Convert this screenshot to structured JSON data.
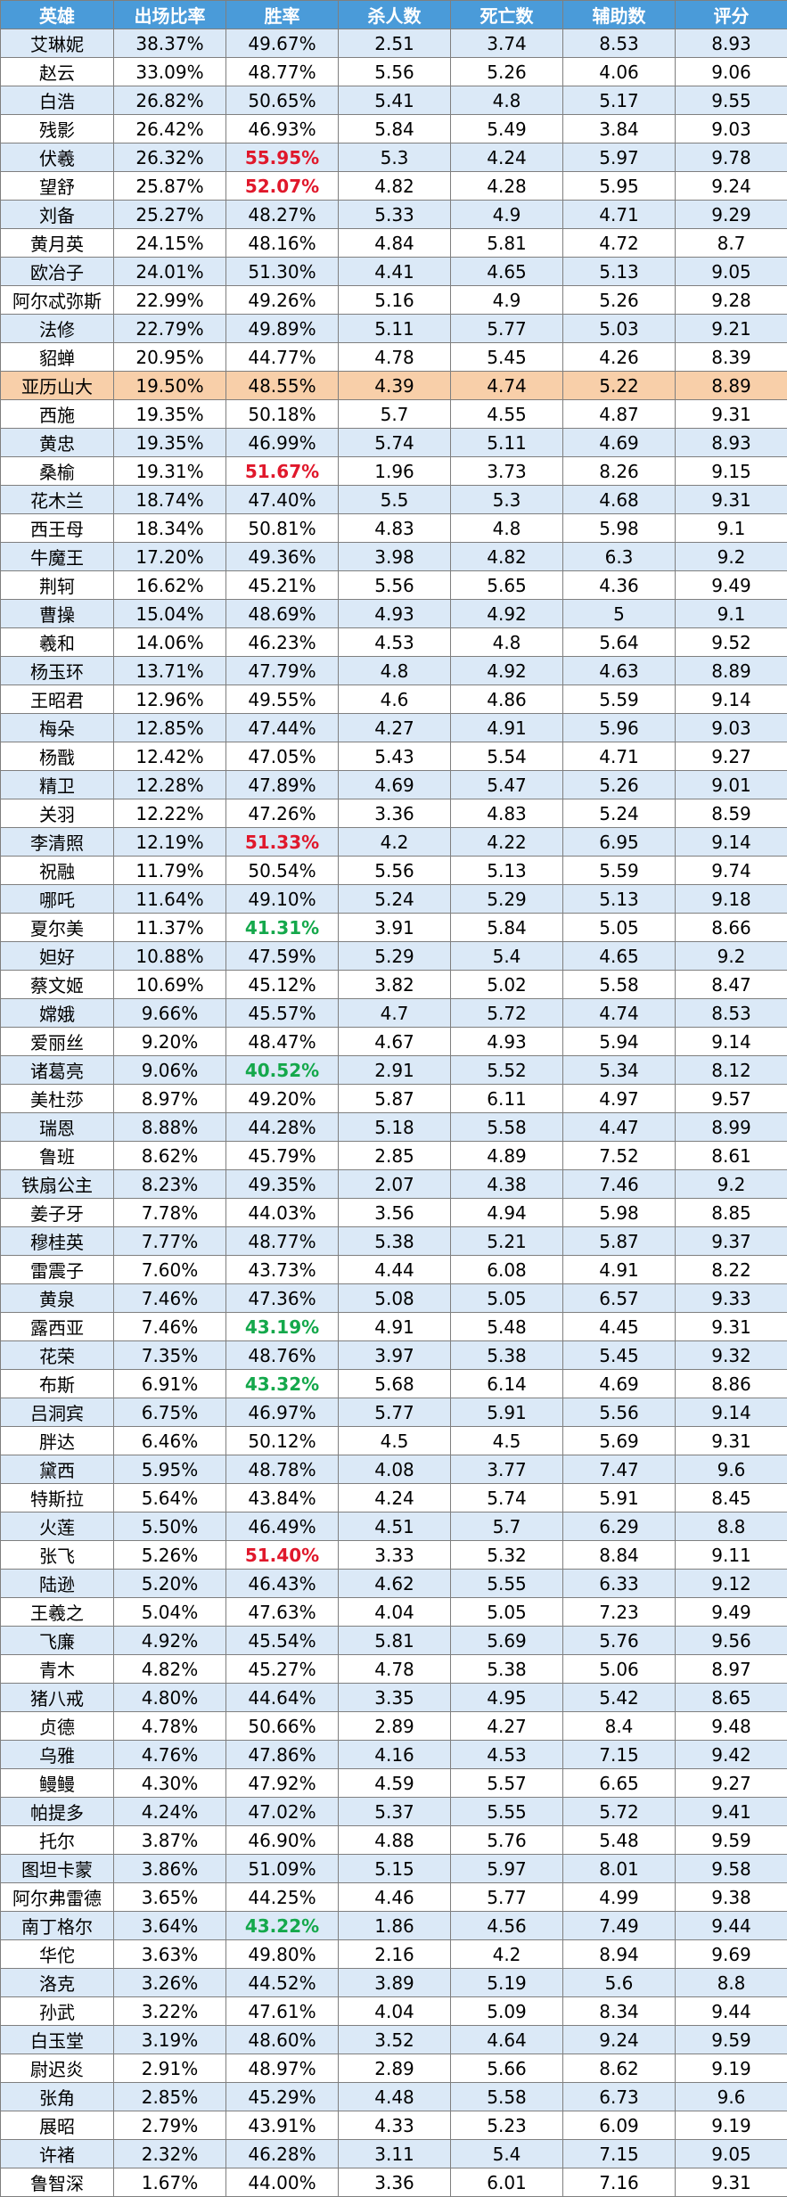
{
  "table": {
    "headers": [
      "英雄",
      "出场比率",
      "胜率",
      "杀人数",
      "死亡数",
      "辅助数",
      "评分"
    ],
    "rows": [
      [
        "艾琳妮",
        "38.37%",
        "49.67%",
        "2.51",
        "3.74",
        "8.53",
        "8.93"
      ],
      [
        "赵云",
        "33.09%",
        "48.77%",
        "5.56",
        "5.26",
        "4.06",
        "9.06"
      ],
      [
        "白浩",
        "26.82%",
        "50.65%",
        "5.41",
        "4.8",
        "5.17",
        "9.55"
      ],
      [
        "残影",
        "26.42%",
        "46.93%",
        "5.84",
        "5.49",
        "3.84",
        "9.03"
      ],
      [
        "伏羲",
        "26.32%",
        "55.95%",
        "5.3",
        "4.24",
        "5.97",
        "9.78"
      ],
      [
        "望舒",
        "25.87%",
        "52.07%",
        "4.82",
        "4.28",
        "5.95",
        "9.24"
      ],
      [
        "刘备",
        "25.27%",
        "48.27%",
        "5.33",
        "4.9",
        "4.71",
        "9.29"
      ],
      [
        "黄月英",
        "24.15%",
        "48.16%",
        "4.84",
        "5.81",
        "4.72",
        "8.7"
      ],
      [
        "欧冶子",
        "24.01%",
        "51.30%",
        "4.41",
        "4.65",
        "5.13",
        "9.05"
      ],
      [
        "阿尔忒弥斯",
        "22.99%",
        "49.26%",
        "5.16",
        "4.9",
        "5.26",
        "9.28"
      ],
      [
        "法修",
        "22.79%",
        "49.89%",
        "5.11",
        "5.77",
        "5.03",
        "9.21"
      ],
      [
        "貂蝉",
        "20.95%",
        "44.77%",
        "4.78",
        "5.45",
        "4.26",
        "8.39"
      ],
      [
        "亚历山大",
        "19.50%",
        "48.55%",
        "4.39",
        "4.74",
        "5.22",
        "8.89"
      ],
      [
        "西施",
        "19.35%",
        "50.18%",
        "5.7",
        "4.55",
        "4.87",
        "9.31"
      ],
      [
        "黄忠",
        "19.35%",
        "46.99%",
        "5.74",
        "5.11",
        "4.69",
        "8.93"
      ],
      [
        "桑榆",
        "19.31%",
        "51.67%",
        "1.96",
        "3.73",
        "8.26",
        "9.15"
      ],
      [
        "花木兰",
        "18.74%",
        "47.40%",
        "5.5",
        "5.3",
        "4.68",
        "9.31"
      ],
      [
        "西王母",
        "18.34%",
        "50.81%",
        "4.83",
        "4.8",
        "5.98",
        "9.1"
      ],
      [
        "牛魔王",
        "17.20%",
        "49.36%",
        "3.98",
        "4.82",
        "6.3",
        "9.2"
      ],
      [
        "荆轲",
        "16.62%",
        "45.21%",
        "5.56",
        "5.65",
        "4.36",
        "9.49"
      ],
      [
        "曹操",
        "15.04%",
        "48.69%",
        "4.93",
        "4.92",
        "5",
        "9.1"
      ],
      [
        "羲和",
        "14.06%",
        "46.23%",
        "4.53",
        "4.8",
        "5.64",
        "9.52"
      ],
      [
        "杨玉环",
        "13.71%",
        "47.79%",
        "4.8",
        "4.92",
        "4.63",
        "8.89"
      ],
      [
        "王昭君",
        "12.96%",
        "49.55%",
        "4.6",
        "4.86",
        "5.59",
        "9.14"
      ],
      [
        "梅朵",
        "12.85%",
        "47.44%",
        "4.27",
        "4.91",
        "5.96",
        "9.03"
      ],
      [
        "杨戬",
        "12.42%",
        "47.05%",
        "5.43",
        "5.54",
        "4.71",
        "9.27"
      ],
      [
        "精卫",
        "12.28%",
        "47.89%",
        "4.69",
        "5.47",
        "5.26",
        "9.01"
      ],
      [
        "关羽",
        "12.22%",
        "47.26%",
        "3.36",
        "4.83",
        "5.24",
        "8.59"
      ],
      [
        "李清照",
        "12.19%",
        "51.33%",
        "4.2",
        "4.22",
        "6.95",
        "9.14"
      ],
      [
        "祝融",
        "11.79%",
        "50.54%",
        "5.56",
        "5.13",
        "5.59",
        "9.74"
      ],
      [
        "哪吒",
        "11.64%",
        "49.10%",
        "5.24",
        "5.29",
        "5.13",
        "9.18"
      ],
      [
        "夏尔美",
        "11.37%",
        "41.31%",
        "3.91",
        "5.84",
        "5.05",
        "8.66"
      ],
      [
        "妲好",
        "10.88%",
        "47.59%",
        "5.29",
        "5.4",
        "4.65",
        "9.2"
      ],
      [
        "蔡文姬",
        "10.69%",
        "45.12%",
        "3.82",
        "5.02",
        "5.58",
        "8.47"
      ],
      [
        "嫦娥",
        "9.66%",
        "45.57%",
        "4.7",
        "5.72",
        "4.74",
        "8.53"
      ],
      [
        "爱丽丝",
        "9.20%",
        "48.47%",
        "4.67",
        "4.93",
        "5.94",
        "9.14"
      ],
      [
        "诸葛亮",
        "9.06%",
        "40.52%",
        "2.91",
        "5.52",
        "5.34",
        "8.12"
      ],
      [
        "美杜莎",
        "8.97%",
        "49.20%",
        "5.87",
        "6.11",
        "4.97",
        "9.57"
      ],
      [
        "瑞恩",
        "8.88%",
        "44.28%",
        "5.18",
        "5.58",
        "4.47",
        "8.99"
      ],
      [
        "鲁班",
        "8.62%",
        "45.79%",
        "2.85",
        "4.89",
        "7.52",
        "8.61"
      ],
      [
        "铁扇公主",
        "8.23%",
        "49.35%",
        "2.07",
        "4.38",
        "7.46",
        "9.2"
      ],
      [
        "姜子牙",
        "7.78%",
        "44.03%",
        "3.56",
        "4.94",
        "5.98",
        "8.85"
      ],
      [
        "穆桂英",
        "7.77%",
        "48.77%",
        "5.38",
        "5.21",
        "5.87",
        "9.37"
      ],
      [
        "雷震子",
        "7.60%",
        "43.73%",
        "4.44",
        "6.08",
        "4.91",
        "8.22"
      ],
      [
        "黄泉",
        "7.46%",
        "47.36%",
        "5.08",
        "5.05",
        "6.57",
        "9.33"
      ],
      [
        "露西亚",
        "7.46%",
        "43.19%",
        "4.91",
        "5.48",
        "4.45",
        "9.31"
      ],
      [
        "花荣",
        "7.35%",
        "48.76%",
        "3.97",
        "5.38",
        "5.45",
        "9.32"
      ],
      [
        "布斯",
        "6.91%",
        "43.32%",
        "5.68",
        "6.14",
        "4.69",
        "8.86"
      ],
      [
        "吕洞宾",
        "6.75%",
        "46.97%",
        "5.77",
        "5.91",
        "5.56",
        "9.14"
      ],
      [
        "胖达",
        "6.46%",
        "50.12%",
        "4.5",
        "4.5",
        "5.69",
        "9.31"
      ],
      [
        "黛西",
        "5.95%",
        "48.78%",
        "4.08",
        "3.77",
        "7.47",
        "9.6"
      ],
      [
        "特斯拉",
        "5.64%",
        "43.84%",
        "4.24",
        "5.74",
        "5.91",
        "8.45"
      ],
      [
        "火莲",
        "5.50%",
        "46.49%",
        "4.51",
        "5.7",
        "6.29",
        "8.8"
      ],
      [
        "张飞",
        "5.26%",
        "51.40%",
        "3.33",
        "5.32",
        "8.84",
        "9.11"
      ],
      [
        "陆逊",
        "5.20%",
        "46.43%",
        "4.62",
        "5.55",
        "6.33",
        "9.12"
      ],
      [
        "王羲之",
        "5.04%",
        "47.63%",
        "4.04",
        "5.05",
        "7.23",
        "9.49"
      ],
      [
        "飞廉",
        "4.92%",
        "45.54%",
        "5.81",
        "5.69",
        "5.76",
        "9.56"
      ],
      [
        "青木",
        "4.82%",
        "45.27%",
        "4.78",
        "5.38",
        "5.06",
        "8.97"
      ],
      [
        "猪八戒",
        "4.80%",
        "44.64%",
        "3.35",
        "4.95",
        "5.42",
        "8.65"
      ],
      [
        "贞德",
        "4.78%",
        "50.66%",
        "2.89",
        "4.27",
        "8.4",
        "9.48"
      ],
      [
        "乌雅",
        "4.76%",
        "47.86%",
        "4.16",
        "4.53",
        "7.15",
        "9.42"
      ],
      [
        "鳗鳗",
        "4.30%",
        "47.92%",
        "4.59",
        "5.57",
        "6.65",
        "9.27"
      ],
      [
        "帕提多",
        "4.24%",
        "47.02%",
        "5.37",
        "5.55",
        "5.72",
        "9.41"
      ],
      [
        "托尔",
        "3.87%",
        "46.90%",
        "4.88",
        "5.76",
        "5.48",
        "9.59"
      ],
      [
        "图坦卡蒙",
        "3.86%",
        "51.09%",
        "5.15",
        "5.97",
        "8.01",
        "9.58"
      ],
      [
        "阿尔弗雷德",
        "3.65%",
        "44.25%",
        "4.46",
        "5.77",
        "4.99",
        "9.38"
      ],
      [
        "南丁格尔",
        "3.64%",
        "43.22%",
        "1.86",
        "4.56",
        "7.49",
        "9.44"
      ],
      [
        "华佗",
        "3.63%",
        "49.80%",
        "2.16",
        "4.2",
        "8.94",
        "9.69"
      ],
      [
        "洛克",
        "3.26%",
        "44.52%",
        "3.89",
        "5.19",
        "5.6",
        "8.8"
      ],
      [
        "孙武",
        "3.22%",
        "47.61%",
        "4.04",
        "5.09",
        "8.34",
        "9.44"
      ],
      [
        "白玉堂",
        "3.19%",
        "48.60%",
        "3.52",
        "4.64",
        "9.24",
        "9.59"
      ],
      [
        "尉迟炎",
        "2.91%",
        "48.97%",
        "2.89",
        "5.66",
        "8.62",
        "9.19"
      ],
      [
        "张角",
        "2.85%",
        "45.29%",
        "4.48",
        "5.58",
        "6.73",
        "9.6"
      ],
      [
        "展昭",
        "2.79%",
        "43.91%",
        "4.33",
        "5.23",
        "6.09",
        "9.19"
      ],
      [
        "许褚",
        "2.32%",
        "46.28%",
        "3.11",
        "5.4",
        "7.15",
        "9.05"
      ],
      [
        "鲁智深",
        "1.67%",
        "44.00%",
        "3.36",
        "6.01",
        "7.16",
        "9.31"
      ]
    ],
    "highlight_row_hero": "亚历山大",
    "red_winrates": [
      "伏羲",
      "望舒",
      "桑榆",
      "李清照",
      "张飞"
    ],
    "green_winrates": [
      "夏尔美",
      "诸葛亮",
      "露西亚",
      "布斯",
      "南丁格尔"
    ]
  },
  "colors": {
    "header_bg": "#4a9bd9",
    "stripe": "#dbe9f7",
    "highlight_row": "#f8cfa9",
    "red_text": "#e0182b",
    "green_text": "#14a84b"
  }
}
